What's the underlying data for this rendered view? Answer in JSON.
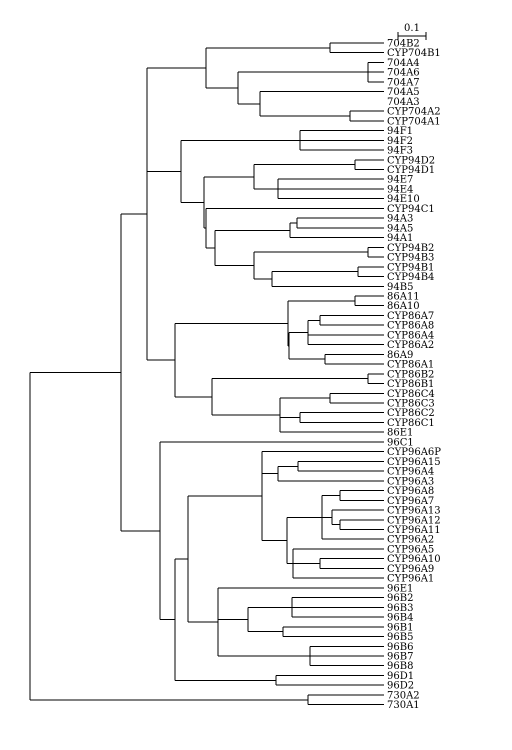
{
  "scale_bar": {
    "label": "0.1",
    "value": 0.1
  },
  "leaves": [
    "704B2",
    "CYP704B1",
    "704A4",
    "704A6",
    "704A7",
    "704A5",
    "704A3",
    "CYP704A2",
    "CYP704A1",
    "94F1",
    "94F2",
    "94F3",
    "CYP94D2",
    "CYP94D1",
    "94E7",
    "94E4",
    "94E10",
    "CYP94C1",
    "94A3",
    "94A5",
    "94A1",
    "CYP94B2",
    "CYP94B3",
    "CYP94B1",
    "CYP94B4",
    "94B5",
    "86A11",
    "86A10",
    "CYP86A7",
    "CYP86A8",
    "CYP86A4",
    "CYP86A2",
    "86A9",
    "CYP86A1",
    "CYP86B2",
    "CYP86B1",
    "CYP86C4",
    "CYP86C3",
    "CYP86C2",
    "CYP86C1",
    "86E1",
    "96C1",
    "CYP96A6P",
    "CYP96A15",
    "CYP96A4",
    "CYP96A3",
    "CYP96A8",
    "CYP96A7",
    "CYP96A13",
    "CYP96A12",
    "CYP96A11",
    "CYP96A2",
    "CYP96A5",
    "CYP96A10",
    "CYP96A9",
    "CYP96A1",
    "96E1",
    "96B2",
    "96B3",
    "96B4",
    "96B1",
    "96B5",
    "96B6",
    "96B7",
    "96B8",
    "96D1",
    "96D2",
    "730A2",
    "730A1"
  ],
  "clades": {
    "CYP704": [
      "704B2",
      "CYP704B1",
      "704A4",
      "704A6",
      "704A7",
      "704A5",
      "704A3",
      "CYP704A2",
      "CYP704A1"
    ],
    "CYP94": [
      "94F1",
      "94F2",
      "94F3",
      "CYP94D2",
      "CYP94D1",
      "94E7",
      "94E4",
      "94E10",
      "CYP94C1",
      "94A3",
      "94A5",
      "94A1",
      "CYP94B2",
      "CYP94B3",
      "CYP94B1",
      "CYP94B4",
      "94B5"
    ],
    "CYP86": [
      "86A11",
      "86A10",
      "CYP86A7",
      "CYP86A8",
      "CYP86A4",
      "CYP86A2",
      "86A9",
      "CYP86A1",
      "CYP86B2",
      "CYP86B1",
      "CYP86C4",
      "CYP86C3",
      "CYP86C2",
      "CYP86C1",
      "86E1"
    ],
    "CYP96": [
      "96C1",
      "CYP96A6P",
      "CYP96A15",
      "CYP96A4",
      "CYP96A3",
      "CYP96A8",
      "CYP96A7",
      "CYP96A13",
      "CYP96A12",
      "CYP96A11",
      "CYP96A2",
      "CYP96A5",
      "CYP96A10",
      "CYP96A9",
      "CYP96A1",
      "96E1",
      "96B2",
      "96B3",
      "96B4",
      "96B1",
      "96B5",
      "96B6",
      "96B7",
      "96B8",
      "96D1",
      "96D2"
    ],
    "CYP730": [
      "730A2",
      "730A1"
    ]
  }
}
